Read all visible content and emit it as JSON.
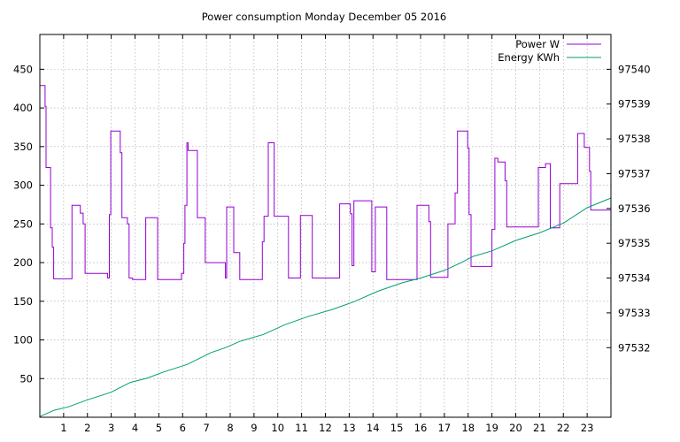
{
  "chart_data": {
    "type": "line",
    "title": "Power consumption Monday December 05 2016",
    "xlabel": "",
    "ylabel": "",
    "xlim": [
      0,
      24
    ],
    "ylim": [
      0,
      495
    ],
    "y2lim": [
      97530.0,
      97541.0
    ],
    "x_ticks": [
      1,
      2,
      3,
      4,
      5,
      6,
      7,
      8,
      9,
      10,
      11,
      12,
      13,
      14,
      15,
      16,
      17,
      18,
      19,
      20,
      21,
      22,
      23
    ],
    "x_tick_labels": [
      "1",
      "2",
      "3",
      "4",
      "5",
      "6",
      "7",
      "8",
      "9",
      "10",
      "11",
      "12",
      "13",
      "14",
      "15",
      "16",
      "17",
      "18",
      "19",
      "20",
      "21",
      "22",
      "23"
    ],
    "y_ticks": [
      50,
      100,
      150,
      200,
      250,
      300,
      350,
      400,
      450
    ],
    "y_tick_labels": [
      "50",
      "100",
      "150",
      "200",
      "250",
      "300",
      "350",
      "400",
      "450"
    ],
    "y2_ticks": [
      97532,
      97533,
      97534,
      97535,
      97536,
      97537,
      97538,
      97539,
      97540
    ],
    "y2_tick_labels": [
      "97532",
      "97533",
      "97534",
      "97535",
      "97536",
      "97537",
      "97538",
      "97539",
      "97540"
    ],
    "grid": true,
    "legend_position": "top-right",
    "series": [
      {
        "name": "Power W",
        "axis": "left",
        "color": "#9400d3",
        "points": [
          [
            0.0,
            429
          ],
          [
            0.22,
            429
          ],
          [
            0.22,
            402
          ],
          [
            0.26,
            402
          ],
          [
            0.26,
            323
          ],
          [
            0.45,
            323
          ],
          [
            0.45,
            245
          ],
          [
            0.52,
            245
          ],
          [
            0.52,
            220
          ],
          [
            0.58,
            220
          ],
          [
            0.58,
            179
          ],
          [
            1.35,
            179
          ],
          [
            1.35,
            274
          ],
          [
            1.7,
            274
          ],
          [
            1.7,
            264
          ],
          [
            1.82,
            264
          ],
          [
            1.82,
            250
          ],
          [
            1.9,
            250
          ],
          [
            1.9,
            186
          ],
          [
            2.85,
            186
          ],
          [
            2.85,
            180
          ],
          [
            2.92,
            180
          ],
          [
            2.92,
            262
          ],
          [
            2.98,
            262
          ],
          [
            2.98,
            370
          ],
          [
            3.38,
            370
          ],
          [
            3.38,
            342
          ],
          [
            3.45,
            342
          ],
          [
            3.45,
            258
          ],
          [
            3.68,
            258
          ],
          [
            3.68,
            250
          ],
          [
            3.75,
            250
          ],
          [
            3.75,
            180
          ],
          [
            3.9,
            180
          ],
          [
            3.9,
            178
          ],
          [
            4.45,
            178
          ],
          [
            4.45,
            258
          ],
          [
            4.95,
            258
          ],
          [
            4.95,
            178
          ],
          [
            5.95,
            178
          ],
          [
            5.95,
            186
          ],
          [
            6.05,
            186
          ],
          [
            6.05,
            225
          ],
          [
            6.1,
            225
          ],
          [
            6.1,
            274
          ],
          [
            6.18,
            274
          ],
          [
            6.18,
            355
          ],
          [
            6.23,
            355
          ],
          [
            6.23,
            345
          ],
          [
            6.62,
            345
          ],
          [
            6.62,
            258
          ],
          [
            6.95,
            258
          ],
          [
            6.95,
            200
          ],
          [
            7.8,
            200
          ],
          [
            7.8,
            180
          ],
          [
            7.85,
            180
          ],
          [
            7.85,
            272
          ],
          [
            8.15,
            272
          ],
          [
            8.15,
            213
          ],
          [
            8.4,
            213
          ],
          [
            8.4,
            178
          ],
          [
            9.35,
            178
          ],
          [
            9.35,
            227
          ],
          [
            9.42,
            227
          ],
          [
            9.42,
            260
          ],
          [
            9.6,
            260
          ],
          [
            9.6,
            355
          ],
          [
            9.85,
            355
          ],
          [
            9.85,
            260
          ],
          [
            10.45,
            260
          ],
          [
            10.45,
            180
          ],
          [
            10.95,
            180
          ],
          [
            10.95,
            261
          ],
          [
            11.45,
            261
          ],
          [
            11.45,
            180
          ],
          [
            12.6,
            180
          ],
          [
            12.6,
            276
          ],
          [
            13.05,
            276
          ],
          [
            13.05,
            263
          ],
          [
            13.12,
            263
          ],
          [
            13.12,
            196
          ],
          [
            13.2,
            196
          ],
          [
            13.2,
            280
          ],
          [
            13.95,
            280
          ],
          [
            13.95,
            188
          ],
          [
            14.1,
            188
          ],
          [
            14.1,
            272
          ],
          [
            14.58,
            272
          ],
          [
            14.58,
            178
          ],
          [
            15.85,
            178
          ],
          [
            15.85,
            274
          ],
          [
            16.35,
            274
          ],
          [
            16.35,
            253
          ],
          [
            16.42,
            253
          ],
          [
            16.42,
            181
          ],
          [
            17.15,
            181
          ],
          [
            17.15,
            250
          ],
          [
            17.45,
            250
          ],
          [
            17.45,
            290
          ],
          [
            17.55,
            290
          ],
          [
            17.55,
            370
          ],
          [
            17.98,
            370
          ],
          [
            17.98,
            348
          ],
          [
            18.04,
            348
          ],
          [
            18.04,
            262
          ],
          [
            18.12,
            262
          ],
          [
            18.12,
            195
          ],
          [
            19.0,
            195
          ],
          [
            19.0,
            243
          ],
          [
            19.12,
            243
          ],
          [
            19.12,
            335
          ],
          [
            19.25,
            335
          ],
          [
            19.25,
            330
          ],
          [
            19.55,
            330
          ],
          [
            19.55,
            306
          ],
          [
            19.62,
            306
          ],
          [
            19.62,
            246
          ],
          [
            20.95,
            246
          ],
          [
            20.95,
            323
          ],
          [
            21.25,
            323
          ],
          [
            21.25,
            328
          ],
          [
            21.45,
            328
          ],
          [
            21.45,
            245
          ],
          [
            21.85,
            245
          ],
          [
            21.85,
            302
          ],
          [
            22.6,
            302
          ],
          [
            22.6,
            367
          ],
          [
            22.88,
            367
          ],
          [
            22.88,
            349
          ],
          [
            23.1,
            349
          ],
          [
            23.1,
            318
          ],
          [
            23.15,
            318
          ],
          [
            23.15,
            268
          ],
          [
            24.0,
            268
          ]
        ]
      },
      {
        "name": "Energy KWh",
        "axis": "right",
        "color": "#009e73",
        "points": [
          [
            0.0,
            97530.02
          ],
          [
            0.6,
            97530.2
          ],
          [
            1.2,
            97530.3
          ],
          [
            2.0,
            97530.5
          ],
          [
            3.0,
            97530.72
          ],
          [
            3.8,
            97531.0
          ],
          [
            4.5,
            97531.12
          ],
          [
            5.2,
            97531.3
          ],
          [
            6.2,
            97531.52
          ],
          [
            7.2,
            97531.86
          ],
          [
            7.8,
            97532.0
          ],
          [
            8.4,
            97532.18
          ],
          [
            9.4,
            97532.38
          ],
          [
            10.3,
            97532.66
          ],
          [
            11.3,
            97532.9
          ],
          [
            12.3,
            97533.1
          ],
          [
            13.2,
            97533.32
          ],
          [
            14.2,
            97533.62
          ],
          [
            15.2,
            97533.86
          ],
          [
            16.0,
            97534.0
          ],
          [
            17.0,
            97534.22
          ],
          [
            17.7,
            97534.44
          ],
          [
            18.2,
            97534.62
          ],
          [
            19.0,
            97534.78
          ],
          [
            20.0,
            97535.08
          ],
          [
            21.0,
            97535.3
          ],
          [
            22.0,
            97535.58
          ],
          [
            23.0,
            97536.02
          ],
          [
            24.0,
            97536.3
          ]
        ]
      }
    ]
  }
}
